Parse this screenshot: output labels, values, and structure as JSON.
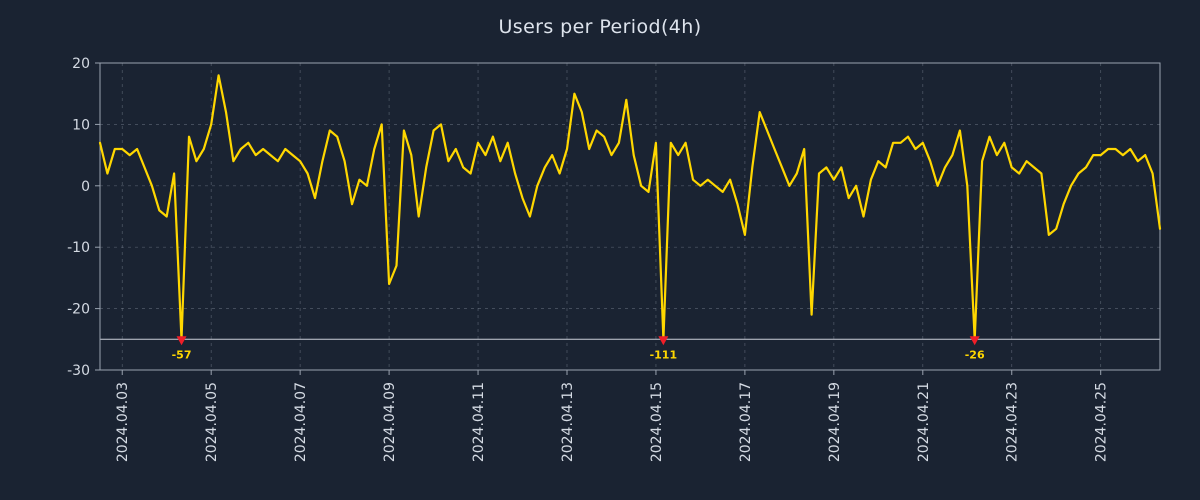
{
  "page": {
    "title": "Users per Period(4h)"
  },
  "chart_data": {
    "type": "line",
    "title": "Users per Period(4h)",
    "series_name": "users",
    "period": "4h",
    "ylim": [
      -30,
      20
    ],
    "yticks": [
      20,
      10,
      0,
      -10,
      -20,
      -30
    ],
    "x_tick_labels": [
      "2024.04.03",
      "2024.04.05",
      "2024.04.07",
      "2024.04.09",
      "2024.04.11",
      "2024.04.13",
      "2024.04.15",
      "2024.04.17",
      "2024.04.19",
      "2024.04.21",
      "2024.04.23",
      "2024.04.25"
    ],
    "x_tick_indices": [
      3,
      15,
      27,
      39,
      51,
      63,
      75,
      87,
      99,
      111,
      123,
      135
    ],
    "grid": true,
    "legend": "none",
    "clip_min": -25,
    "colors": {
      "background": "#1a2332",
      "line": "#ffd700",
      "marker": "#f01e28",
      "annotation": "#ffd700",
      "grid": "#97a0ae",
      "frame": "#9aa3b0",
      "text": "#d4dae3",
      "threshold": "#c9ced8"
    },
    "values": [
      7,
      2,
      6,
      6,
      5,
      6,
      3,
      0,
      -4,
      -5,
      2,
      -57,
      8,
      4,
      6,
      10,
      18,
      12,
      4,
      6,
      7,
      5,
      6,
      5,
      4,
      6,
      5,
      4,
      2,
      -2,
      4,
      9,
      8,
      4,
      -3,
      1,
      0,
      6,
      10,
      -16,
      -13,
      9,
      5,
      -5,
      3,
      9,
      10,
      4,
      6,
      3,
      2,
      7,
      5,
      8,
      4,
      7,
      2,
      -2,
      -5,
      0,
      3,
      5,
      2,
      6,
      15,
      12,
      6,
      9,
      8,
      5,
      7,
      14,
      5,
      0,
      -1,
      7,
      -111,
      7,
      5,
      7,
      1,
      0,
      1,
      0,
      -1,
      1,
      -3,
      -8,
      3,
      12,
      9,
      6,
      3,
      0,
      2,
      6,
      -21,
      2,
      3,
      1,
      3,
      -2,
      0,
      -5,
      1,
      4,
      3,
      7,
      7,
      8,
      6,
      7,
      4,
      0,
      3,
      5,
      9,
      0,
      -26,
      4,
      8,
      5,
      7,
      3,
      2,
      4,
      3,
      2,
      -8,
      -7,
      -3,
      0,
      2,
      3,
      5,
      5,
      6,
      6,
      5,
      6,
      4,
      5,
      2,
      -7
    ],
    "annotations": [
      {
        "index": 11,
        "value": -57,
        "label": "-57"
      },
      {
        "index": 76,
        "value": -111,
        "label": "-111"
      },
      {
        "index": 118,
        "value": -26,
        "label": "-26"
      }
    ]
  }
}
